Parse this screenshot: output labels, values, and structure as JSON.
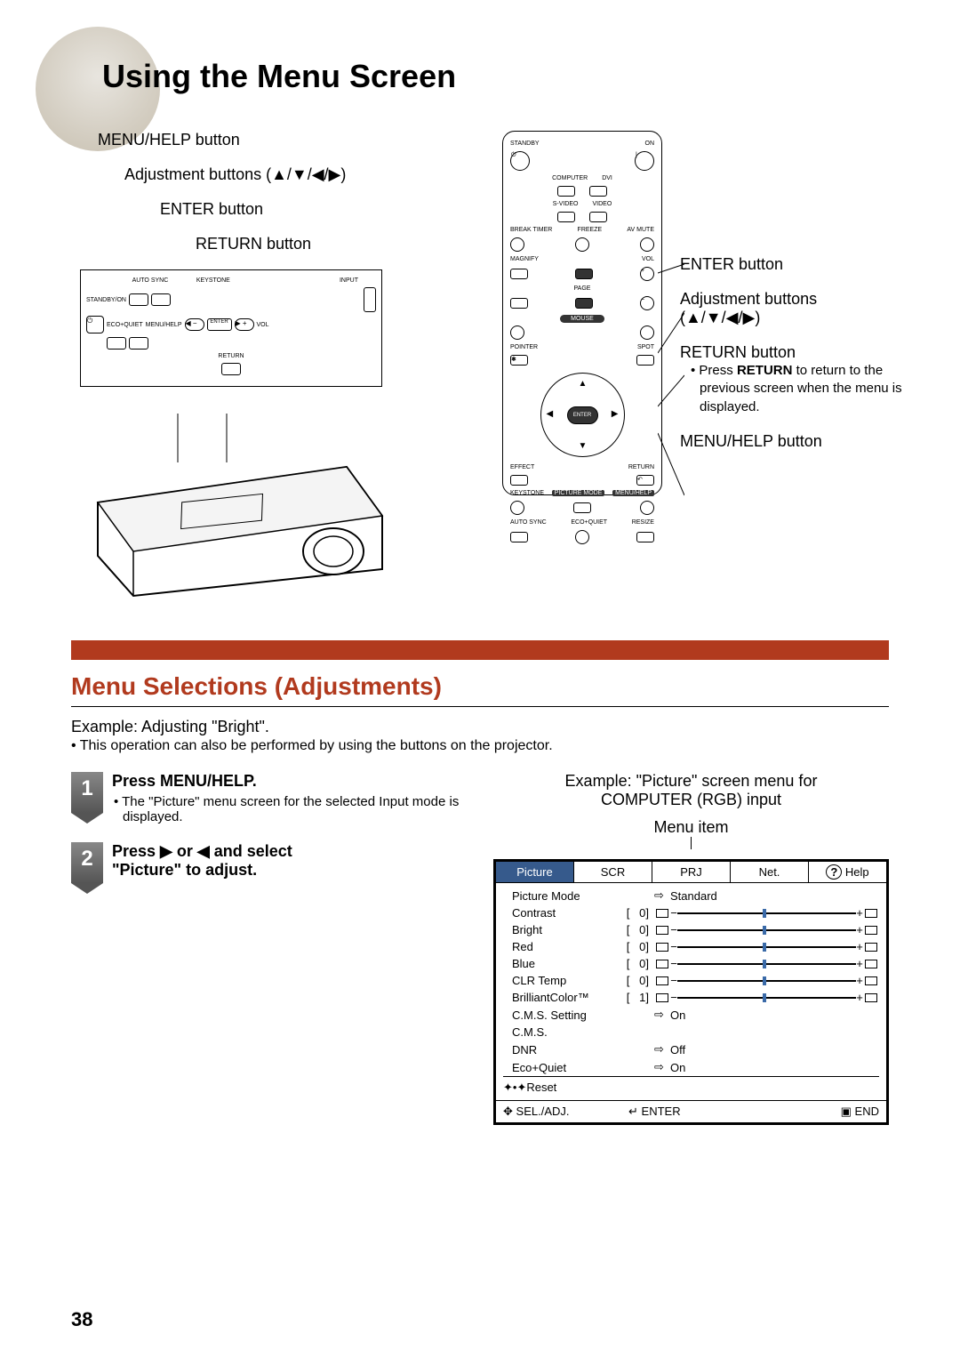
{
  "title": "Using the Menu Screen",
  "page_number": "38",
  "left_labels": {
    "menu_help": "MENU/HELP button",
    "adjustment": "Adjustment buttons (▲/▼/◀/▶)",
    "enter": "ENTER button",
    "return": "RETURN button"
  },
  "projector_buttons": {
    "auto_sync": "AUTO SYNC",
    "keystone": "KEYSTONE",
    "input": "INPUT",
    "standby": "STANDBY/ON",
    "eco_quiet": "ECO+QUIET",
    "menu_help": "MENU/HELP",
    "enter": "ENTER",
    "return": "RETURN",
    "vol": "VOL"
  },
  "remote_buttons": {
    "standby": "STANDBY",
    "on": "ON",
    "computer": "COMPUTER",
    "dvi": "DVI",
    "svideo": "S-VIDEO",
    "video": "VIDEO",
    "break_timer": "BREAK TIMER",
    "freeze": "FREEZE",
    "av_mute": "AV MUTE",
    "magnify": "MAGNIFY",
    "page": "PAGE",
    "vol": "VOL",
    "mouse": "MOUSE",
    "pointer": "POINTER",
    "spot": "SPOT",
    "enter": "ENTER",
    "effect": "EFFECT",
    "return": "RETURN",
    "keystone": "KEYSTONE",
    "picture_mode": "PICTURE MODE",
    "menu_help": "MENU/HELP",
    "auto_sync": "AUTO SYNC",
    "eco_quiet": "ECO+QUIET",
    "resize": "RESIZE"
  },
  "right_labels": {
    "enter": "ENTER button",
    "adjustment": "Adjustment buttons",
    "adjustment_arrows": "(▲/▼/◀/▶)",
    "return": "RETURN button",
    "return_note": "• Press RETURN to return to the previous screen when the menu is displayed.",
    "menu_help": "MENU/HELP button"
  },
  "section_header": "Menu Selections (Adjustments)",
  "example_text": "Example: Adjusting \"Bright\".",
  "example_sub": "• This operation can also be performed by using the buttons on the projector.",
  "steps": [
    {
      "num": "1",
      "title": "Press MENU/HELP.",
      "sub": "• The \"Picture\" menu screen for the selected Input mode is displayed."
    },
    {
      "num": "2",
      "title": "Press ▶ or ◀ and select \"Picture\" to adjust.",
      "sub": ""
    }
  ],
  "menu_example_caption1": "Example: \"Picture\" screen menu for",
  "menu_example_caption2": "COMPUTER (RGB) input",
  "menu_item_label": "Menu item",
  "menu_tabs": [
    "Picture",
    "SCR",
    "PRJ",
    "Net.",
    "Help"
  ],
  "menu_help_icon": "?",
  "menu_rows": [
    {
      "label": "Picture Mode",
      "type": "arrow",
      "text": "Standard"
    },
    {
      "label": "Contrast",
      "type": "slider",
      "val": "0"
    },
    {
      "label": "Bright",
      "type": "slider",
      "val": "0"
    },
    {
      "label": "Red",
      "type": "slider",
      "val": "0"
    },
    {
      "label": "Blue",
      "type": "slider",
      "val": "0"
    },
    {
      "label": "CLR Temp",
      "type": "slider",
      "val": "0"
    },
    {
      "label": "BrilliantColor™",
      "type": "slider",
      "val": "1"
    },
    {
      "label": "C.M.S. Setting",
      "type": "arrow",
      "text": "On"
    },
    {
      "label": "C.M.S.",
      "type": "plain",
      "text": ""
    },
    {
      "label": "DNR",
      "type": "arrow",
      "text": "Off"
    },
    {
      "label": "Eco+Quiet",
      "type": "arrow",
      "text": "On"
    },
    {
      "label": "Reset",
      "type": "reset",
      "text": ""
    }
  ],
  "menu_footer": {
    "sel": "SEL./ADJ.",
    "enter": "ENTER",
    "end": "END"
  },
  "colors": {
    "accent_red": "#b13a1e",
    "tab_active": "#365a8c",
    "slider_thumb": "#3a6aa8"
  }
}
